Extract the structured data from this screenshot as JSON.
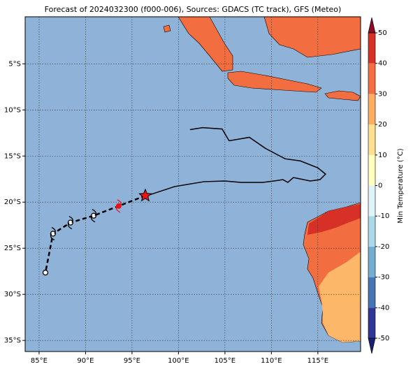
{
  "title": "Forecast of 2024032300 (f000-006), Sources: GDACS (TC track), GFS (Meteo)",
  "map": {
    "lonlim": [
      83.5,
      119.6
    ],
    "latlim": [
      -36.2,
      0.1
    ],
    "ocean_color": "#8fb3d8",
    "lonticks": [
      {
        "value": 85,
        "label": "85°E"
      },
      {
        "value": 90,
        "label": "90°E"
      },
      {
        "value": 95,
        "label": "95°E"
      },
      {
        "value": 100,
        "label": "100°E"
      },
      {
        "value": 105,
        "label": "105°E"
      },
      {
        "value": 110,
        "label": "110°E"
      },
      {
        "value": 115,
        "label": "115°E"
      }
    ],
    "latticks": [
      {
        "value": -5,
        "label": "5°S"
      },
      {
        "value": -10,
        "label": "10°S"
      },
      {
        "value": -15,
        "label": "15°S"
      },
      {
        "value": -20,
        "label": "20°S"
      },
      {
        "value": -25,
        "label": "25°S"
      },
      {
        "value": -30,
        "label": "30°S"
      },
      {
        "value": -35,
        "label": "35°S"
      }
    ]
  },
  "track_observed": {
    "lon": [
      101.24,
      102.6,
      104.7,
      105.45,
      107.63,
      109.36,
      111.47,
      113.12,
      115.0,
      115.83,
      115.23,
      114.18,
      112.37,
      111.77,
      111.24,
      110.27,
      109.06,
      106.73,
      105.0,
      102.75,
      99.59,
      96.43
    ],
    "lat": [
      -12.14,
      -11.92,
      -12.07,
      -13.35,
      -12.97,
      -14.17,
      -15.3,
      -15.53,
      -16.28,
      -16.96,
      -17.56,
      -17.71,
      -17.33,
      -17.86,
      -17.56,
      -17.71,
      -17.86,
      -17.86,
      -17.71,
      -17.78,
      -18.31,
      -19.36
    ]
  },
  "track_forecast": {
    "lon": [
      96.43,
      93.57,
      90.87,
      88.38,
      86.5,
      85.68
    ],
    "lat": [
      -19.3,
      -20.42,
      -21.47,
      -22.22,
      -23.42,
      -27.64
    ]
  },
  "colorbar": {
    "label": "Min Temperature (°C)",
    "lim": [
      -50,
      50
    ],
    "ticks": [
      -50,
      -40,
      -30,
      -20,
      -10,
      0,
      10,
      20,
      30,
      40,
      50
    ],
    "colors": [
      "#313695",
      "#4575b4",
      "#74add1",
      "#abd9e9",
      "#e0f3f8",
      "#ffffbf",
      "#fee090",
      "#fdae61",
      "#f46d43",
      "#d73027"
    ],
    "under_color": "#1b1f6e",
    "over_color": "#8b0a26"
  }
}
